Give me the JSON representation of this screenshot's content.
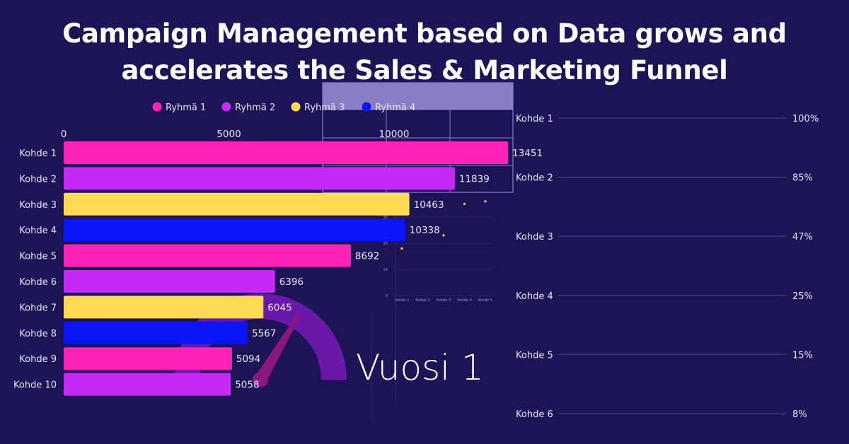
{
  "title_line1": "Campaign Management based on Data grows and",
  "title_line2": "accelerates the Sales & Marketing Funnel",
  "year_label": "Vuosi 1",
  "colors": {
    "background": "#1c1456",
    "ryhma1": "#ff22b8",
    "ryhma2": "#c62bf5",
    "ryhma3": "#ffda55",
    "ryhma4": "#0a16f5",
    "gauge": "#6a18a8",
    "needle": "#8a1680"
  },
  "chart_data": [
    {
      "type": "bar",
      "orientation": "horizontal",
      "legend": [
        "Ryhmä 1",
        "Ryhmä 2",
        "Ryhmä 3",
        "Ryhmä 4"
      ],
      "legend_placement": "top",
      "categories": [
        "Kohde 1",
        "Kohde 2",
        "Kohde 3",
        "Kohde 4",
        "Kohde 5",
        "Kohde 6",
        "Kohde 7",
        "Kohde 8",
        "Kohde 9",
        "Kohde 10"
      ],
      "values": [
        13451,
        11839,
        10463,
        10338,
        8692,
        6396,
        6045,
        5567,
        5094,
        5058
      ],
      "groups": [
        "Ryhmä 1",
        "Ryhmä 2",
        "Ryhmä 3",
        "Ryhmä 4",
        "Ryhmä 1",
        "Ryhmä 2",
        "Ryhmä 3",
        "Ryhmä 4",
        "Ryhmä 1",
        "Ryhmä 2"
      ],
      "x_ticks": [
        0,
        5000,
        10000
      ],
      "xlim": [
        0,
        13451
      ]
    },
    {
      "type": "funnel",
      "categories": [
        "Kohde 1",
        "Kohde 2",
        "Kohde 3",
        "Kohde 4",
        "Kohde 5",
        "Kohde 6"
      ],
      "values": [
        "100%",
        "85%",
        "47%",
        "25%",
        "15%",
        "8%"
      ]
    },
    {
      "type": "scatter",
      "categories": [
        "Kohde 1",
        "Kohde 2",
        "Kohde 3",
        "Kohde 4",
        "Kohde 5"
      ],
      "y_ticks": [
        0,
        10,
        20,
        30
      ],
      "points": [
        {
          "x": "Kohde 1",
          "y": 18
        },
        {
          "x": "Kohde 3",
          "y": 23
        },
        {
          "x": "Kohde 4",
          "y": 35
        },
        {
          "x": "Kohde 5",
          "y": 36
        }
      ]
    }
  ]
}
